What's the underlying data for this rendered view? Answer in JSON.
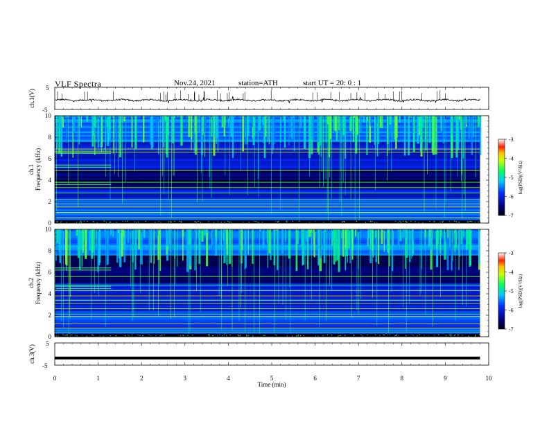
{
  "header": {
    "title": "VLF  Spectra",
    "date": "Nov.24, 2021",
    "station": "station=ATH",
    "start": "start  UT  =    20: 0   : 1"
  },
  "colors": {
    "spectro_low": "#000a3a",
    "spectro_mid": "#0033ff",
    "spectro_high": "#00ffcc",
    "waveform": "#000000"
  },
  "chart_data": [
    {
      "type": "line",
      "panel": "ch1-waveform",
      "ylabel": "ch.1(V)",
      "yticks": [
        "5",
        "-5"
      ],
      "ylim": [
        -5,
        5
      ],
      "xlim": [
        0,
        10
      ],
      "series": [
        {
          "x_range": [
            0,
            9.8
          ],
          "approx_level": -0.8,
          "amplitude": 0.5
        }
      ]
    },
    {
      "type": "heatmap",
      "panel": "ch1-spectrogram",
      "ylabel": "ch.1\nFrequency  (kHz)",
      "yticks": [
        "0",
        "2",
        "4",
        "6",
        "8",
        "10"
      ],
      "ylim": [
        0,
        10
      ],
      "xlim": [
        0,
        10
      ],
      "data_extent_min": [
        0,
        9.8
      ],
      "quiet_band_khz": [
        3.2,
        5.0
      ],
      "colorbar": {
        "label": "log(PSD)(V²/Hz)",
        "ticks": [
          "-3",
          "-4",
          "-5",
          "-6",
          "-7"
        ],
        "range": [
          -7,
          -3
        ]
      }
    },
    {
      "type": "heatmap",
      "panel": "ch2-spectrogram",
      "ylabel": "ch.2\nFrequency  (kHz)",
      "yticks": [
        "0",
        "2",
        "4",
        "6",
        "8",
        "10"
      ],
      "ylim": [
        0,
        10
      ],
      "xlim": [
        0,
        10
      ],
      "data_extent_min": [
        0,
        9.8
      ],
      "quiet_band_khz": [
        5.0,
        7.5
      ],
      "colorbar": {
        "label": "log(PSD)(V²/Hz)",
        "ticks": [
          "-3",
          "-4",
          "-5",
          "-6",
          "-7"
        ],
        "range": [
          -7,
          -3
        ]
      }
    },
    {
      "type": "line",
      "panel": "ch3-waveform",
      "ylabel": "ch.3(V)",
      "yticks": [
        "5",
        "-5"
      ],
      "ylim": [
        -5,
        5
      ],
      "xlim": [
        0,
        10
      ],
      "series": [
        {
          "x_range": [
            0,
            9.8
          ],
          "approx_level": -1.8,
          "amplitude": 0.1
        }
      ]
    }
  ],
  "xaxis": {
    "label": "Time  (min)",
    "ticks": [
      "0",
      "1",
      "2",
      "3",
      "4",
      "5",
      "6",
      "7",
      "8",
      "9",
      "10"
    ]
  }
}
